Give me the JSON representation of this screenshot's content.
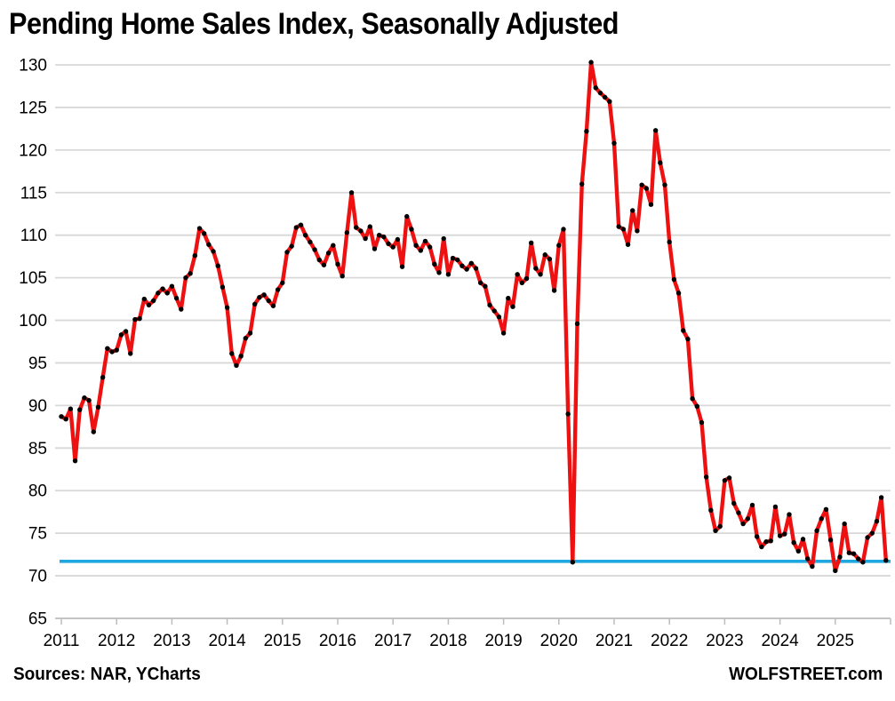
{
  "page": {
    "title": "Pending Home Sales Index, Seasonally Adjusted",
    "footer_left": "Sources: NAR, YCharts",
    "footer_right": "WOLFSTREET.com"
  },
  "colors": {
    "series_line": "#ee1111",
    "marker": "#000000",
    "reference_line": "#1fa8e0",
    "gridline": "#d8d8d8",
    "axis": "#bdbdbd",
    "text": "#000000",
    "background": "#ffffff"
  },
  "chart_data": {
    "type": "line",
    "title": "Pending Home Sales Index, Seasonally Adjusted",
    "frequency": "monthly",
    "x_start": "2011-01",
    "x_end": "2025-12",
    "x_tick_labels": [
      "2011",
      "2012",
      "2013",
      "2014",
      "2015",
      "2016",
      "2017",
      "2018",
      "2019",
      "2020",
      "2021",
      "2022",
      "2023",
      "2024",
      "2025"
    ],
    "y_ticks": [
      65,
      70,
      75,
      80,
      85,
      90,
      95,
      100,
      105,
      110,
      115,
      120,
      125,
      130
    ],
    "ylim": [
      65,
      130
    ],
    "grid": "horizontal",
    "legend": "none",
    "reference_line": {
      "value": 71.7
    },
    "series": [
      {
        "name": "Pending Home Sales Index (seasonally adjusted)",
        "values": [
          88.7,
          88.4,
          89.6,
          83.5,
          89.5,
          90.9,
          90.6,
          86.9,
          89.8,
          93.3,
          96.7,
          96.3,
          96.5,
          98.3,
          98.7,
          96.1,
          100.1,
          100.2,
          102.5,
          101.8,
          102.3,
          103.2,
          103.7,
          103.2,
          104.0,
          102.6,
          101.3,
          105.0,
          105.5,
          107.6,
          110.8,
          110.2,
          108.9,
          108.1,
          106.4,
          103.9,
          101.5,
          96.1,
          94.7,
          95.8,
          97.9,
          98.5,
          101.9,
          102.7,
          103.0,
          102.3,
          101.7,
          103.6,
          104.4,
          108.0,
          108.7,
          110.9,
          111.2,
          110.0,
          109.2,
          108.3,
          107.1,
          106.5,
          107.9,
          108.8,
          106.6,
          105.2,
          110.3,
          115.0,
          110.9,
          110.5,
          109.6,
          111.0,
          108.4,
          110.0,
          109.8,
          109.0,
          108.6,
          109.5,
          106.3,
          112.2,
          110.7,
          108.8,
          108.2,
          109.3,
          108.6,
          106.6,
          105.6,
          109.6,
          105.4,
          107.3,
          107.1,
          106.4,
          106.0,
          106.7,
          106.1,
          104.4,
          104.0,
          101.8,
          101.1,
          100.4,
          98.5,
          102.6,
          101.6,
          105.4,
          104.4,
          104.9,
          109.1,
          106.1,
          105.4,
          107.7,
          107.2,
          103.5,
          108.8,
          110.7,
          89.0,
          71.6,
          99.6,
          116.0,
          122.2,
          130.3,
          127.3,
          126.7,
          126.2,
          125.7,
          120.8,
          111.0,
          110.7,
          108.9,
          112.9,
          110.5,
          115.9,
          115.5,
          113.6,
          122.3,
          118.5,
          115.9,
          109.2,
          104.8,
          103.2,
          98.8,
          97.8,
          90.8,
          89.9,
          88.0,
          81.6,
          77.7,
          75.3,
          75.8,
          81.2,
          81.5,
          78.5,
          77.4,
          76.1,
          76.7,
          78.3,
          74.6,
          73.4,
          74.0,
          74.1,
          78.1,
          74.7,
          74.9,
          77.2,
          73.9,
          72.9,
          74.3,
          72.0,
          71.1,
          75.3,
          76.7,
          77.8,
          74.2,
          70.6,
          72.2,
          76.1,
          72.7,
          72.6,
          72.0,
          71.6,
          74.5,
          75.0,
          76.4,
          79.2,
          71.8
        ]
      }
    ]
  }
}
